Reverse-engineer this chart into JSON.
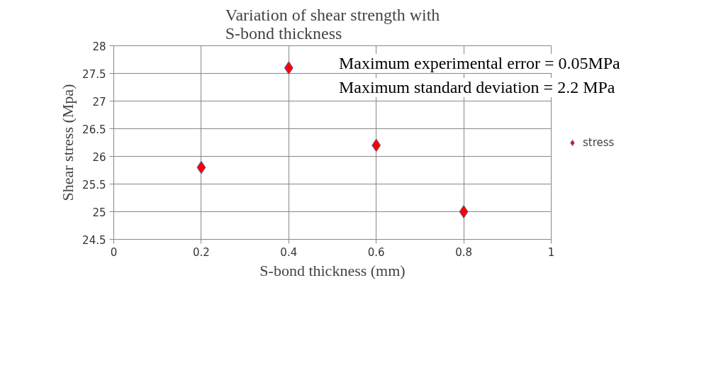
{
  "chart_data": {
    "type": "scatter",
    "title": "Variation of shear strength with\nS-bond thickness",
    "xlabel": "S-bond thickness (mm)",
    "ylabel": "Shear stress (Mpa)",
    "x": [
      0.2,
      0.4,
      0.6,
      0.8
    ],
    "series": [
      {
        "name": "stress",
        "color": "#ff0000",
        "values": [
          25.8,
          27.6,
          26.2,
          25.0
        ]
      }
    ],
    "xlim": [
      0,
      1
    ],
    "xticks": [
      0,
      0.2,
      0.4,
      0.6,
      0.8,
      1
    ],
    "ylim": [
      24.5,
      28
    ],
    "yticks": [
      24.5,
      25,
      25.5,
      26,
      26.5,
      27,
      27.5,
      28
    ],
    "grid": true,
    "legend": "right",
    "marker": "diamond",
    "annotations": [
      "Maximum experimental error = 0.05MPa",
      "Maximum standard deviation = 2.2 MPa"
    ]
  }
}
